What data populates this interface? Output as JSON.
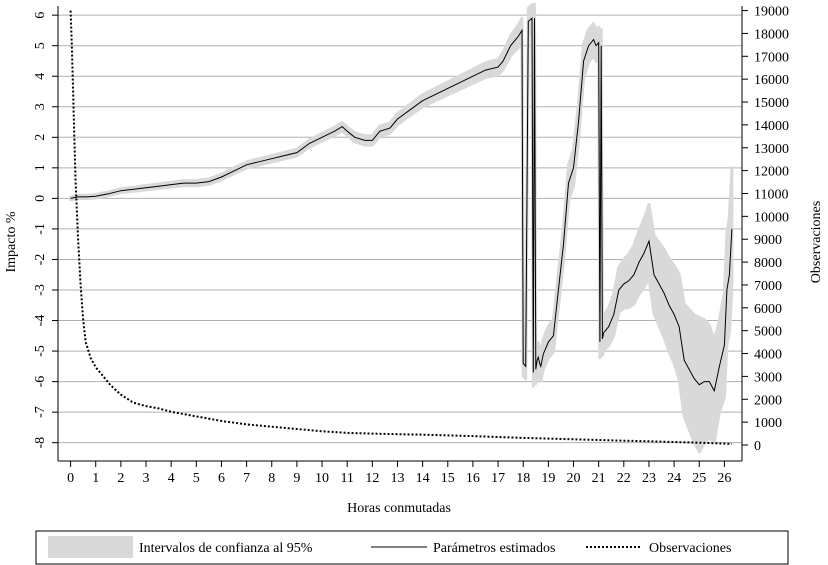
{
  "chart_data": {
    "type": "line",
    "title": "",
    "xlabel": "Horas conmutadas",
    "ylabel_left": "Impacto %",
    "ylabel_right": "Observaciones",
    "x_ticks": [
      "0",
      "1",
      "2",
      "3",
      "4",
      "5",
      "6",
      "7",
      "8",
      "9",
      "10",
      "11",
      "12",
      "13",
      "14",
      "15",
      "16",
      "17",
      "18",
      "19",
      "20",
      "21",
      "22",
      "23",
      "24",
      "25",
      "26"
    ],
    "y_left_ticks": [
      "-8",
      "-7",
      "-6",
      "-5",
      "-4",
      "-3",
      "-2",
      "-1",
      "0",
      "1",
      "2",
      "3",
      "4",
      "5",
      "6"
    ],
    "y_right_ticks": [
      "0",
      "1000",
      "2000",
      "3000",
      "4000",
      "5000",
      "6000",
      "7000",
      "8000",
      "9000",
      "10000",
      "11000",
      "12000",
      "13000",
      "14000",
      "15000",
      "16000",
      "17000",
      "18000",
      "19000"
    ],
    "xlim": [
      -0.5,
      26.7
    ],
    "ylim_left": [
      -8.6,
      6.3
    ],
    "ylim_right": [
      -700,
      19200
    ],
    "grid": "horizontal",
    "legend_position": "bottom",
    "colors": {
      "band": "#d9d9d9",
      "line": "#000000",
      "dotted": "#000000",
      "grid": "#b0b0b0"
    },
    "series": [
      {
        "name": "Parámetros estimados",
        "axis": "left",
        "x": [
          0,
          0.3,
          0.6,
          1,
          1.5,
          2,
          2.5,
          3,
          3.5,
          4,
          4.5,
          5,
          5.5,
          6,
          6.5,
          7,
          7.5,
          8,
          8.5,
          9,
          9.5,
          10,
          10.5,
          10.8,
          11,
          11.3,
          11.7,
          12,
          12.3,
          12.7,
          13,
          13.5,
          14,
          14.5,
          15,
          15.5,
          16,
          16.5,
          17,
          17.2,
          17.5,
          17.8,
          17.95,
          18.0,
          18.1,
          18.2,
          18.35,
          18.4,
          18.45,
          18.5,
          18.55,
          18.6,
          18.65,
          18.7,
          18.8,
          19.0,
          19.2,
          19.4,
          19.6,
          19.8,
          20.0,
          20.2,
          20.4,
          20.6,
          20.8,
          20.9,
          21.0,
          21.05,
          21.1,
          21.15,
          21.2,
          21.4,
          21.6,
          21.8,
          22.0,
          22.2,
          22.4,
          22.6,
          22.8,
          23.0,
          23.2,
          23.4,
          23.6,
          23.8,
          24.0,
          24.2,
          24.4,
          24.6,
          24.8,
          25.0,
          25.2,
          25.4,
          25.6,
          25.8,
          26.0,
          26.1,
          26.2,
          26.3
        ],
        "y": [
          0,
          0.05,
          0.05,
          0.07,
          0.15,
          0.25,
          0.3,
          0.35,
          0.4,
          0.45,
          0.5,
          0.5,
          0.55,
          0.7,
          0.9,
          1.1,
          1.2,
          1.3,
          1.4,
          1.5,
          1.8,
          2.0,
          2.2,
          2.35,
          2.2,
          2.0,
          1.9,
          1.9,
          2.2,
          2.3,
          2.6,
          2.9,
          3.2,
          3.4,
          3.6,
          3.8,
          4.0,
          4.2,
          4.3,
          4.5,
          5.0,
          5.3,
          5.5,
          -5.4,
          -5.5,
          5.8,
          5.9,
          -5.7,
          5.9,
          -5.6,
          -5.3,
          -5.2,
          -5.4,
          -5.5,
          -5.1,
          -4.7,
          -4.5,
          -3.0,
          -1.5,
          0.5,
          1.0,
          2.5,
          4.5,
          5.0,
          5.2,
          5.0,
          5.1,
          -4.7,
          5.0,
          -4.6,
          -4.4,
          -4.2,
          -3.8,
          -3.0,
          -2.8,
          -2.7,
          -2.5,
          -2.1,
          -1.8,
          -1.4,
          -2.5,
          -2.8,
          -3.1,
          -3.5,
          -3.8,
          -4.2,
          -5.3,
          -5.6,
          -5.9,
          -6.1,
          -6.0,
          -6.0,
          -6.3,
          -5.5,
          -4.8,
          -3.0,
          -2.5,
          -1.0
        ]
      },
      {
        "name": "Observaciones",
        "axis": "right",
        "x": [
          0,
          0.05,
          0.1,
          0.15,
          0.2,
          0.3,
          0.4,
          0.5,
          0.6,
          0.8,
          1.0,
          1.3,
          1.6,
          2.0,
          2.5,
          3.0,
          3.5,
          4,
          5,
          6,
          7,
          8,
          9,
          10,
          11,
          12,
          13,
          14,
          15,
          16,
          17,
          18,
          19,
          20,
          21,
          22,
          23,
          24,
          25,
          26,
          26.3
        ],
        "y": [
          19000,
          17500,
          15500,
          13500,
          11500,
          9000,
          7000,
          5500,
          4500,
          3800,
          3400,
          3000,
          2600,
          2200,
          1850,
          1700,
          1600,
          1450,
          1250,
          1050,
          900,
          800,
          700,
          600,
          530,
          500,
          470,
          450,
          420,
          390,
          350,
          310,
          280,
          250,
          220,
          190,
          160,
          130,
          100,
          60,
          50
        ]
      }
    ],
    "band": {
      "name": "Intervalos de confianza al 95%",
      "axis": "left",
      "half_width_points": [
        [
          0,
          0.05
        ],
        [
          10,
          0.12
        ],
        [
          17,
          0.25
        ],
        [
          18,
          0.4
        ],
        [
          18.8,
          0.5
        ],
        [
          20,
          0.6
        ],
        [
          21,
          0.5
        ],
        [
          22,
          0.8
        ],
        [
          23,
          1.2
        ],
        [
          24,
          1.6
        ],
        [
          25,
          2.2
        ],
        [
          25.8,
          1.5
        ],
        [
          26.3,
          2.0
        ]
      ]
    },
    "legend": [
      {
        "kind": "band",
        "label": "Intervalos de confianza al 95%"
      },
      {
        "kind": "solid",
        "label": "Parámetros estimados"
      },
      {
        "kind": "dotted",
        "label": "Observaciones"
      }
    ]
  }
}
